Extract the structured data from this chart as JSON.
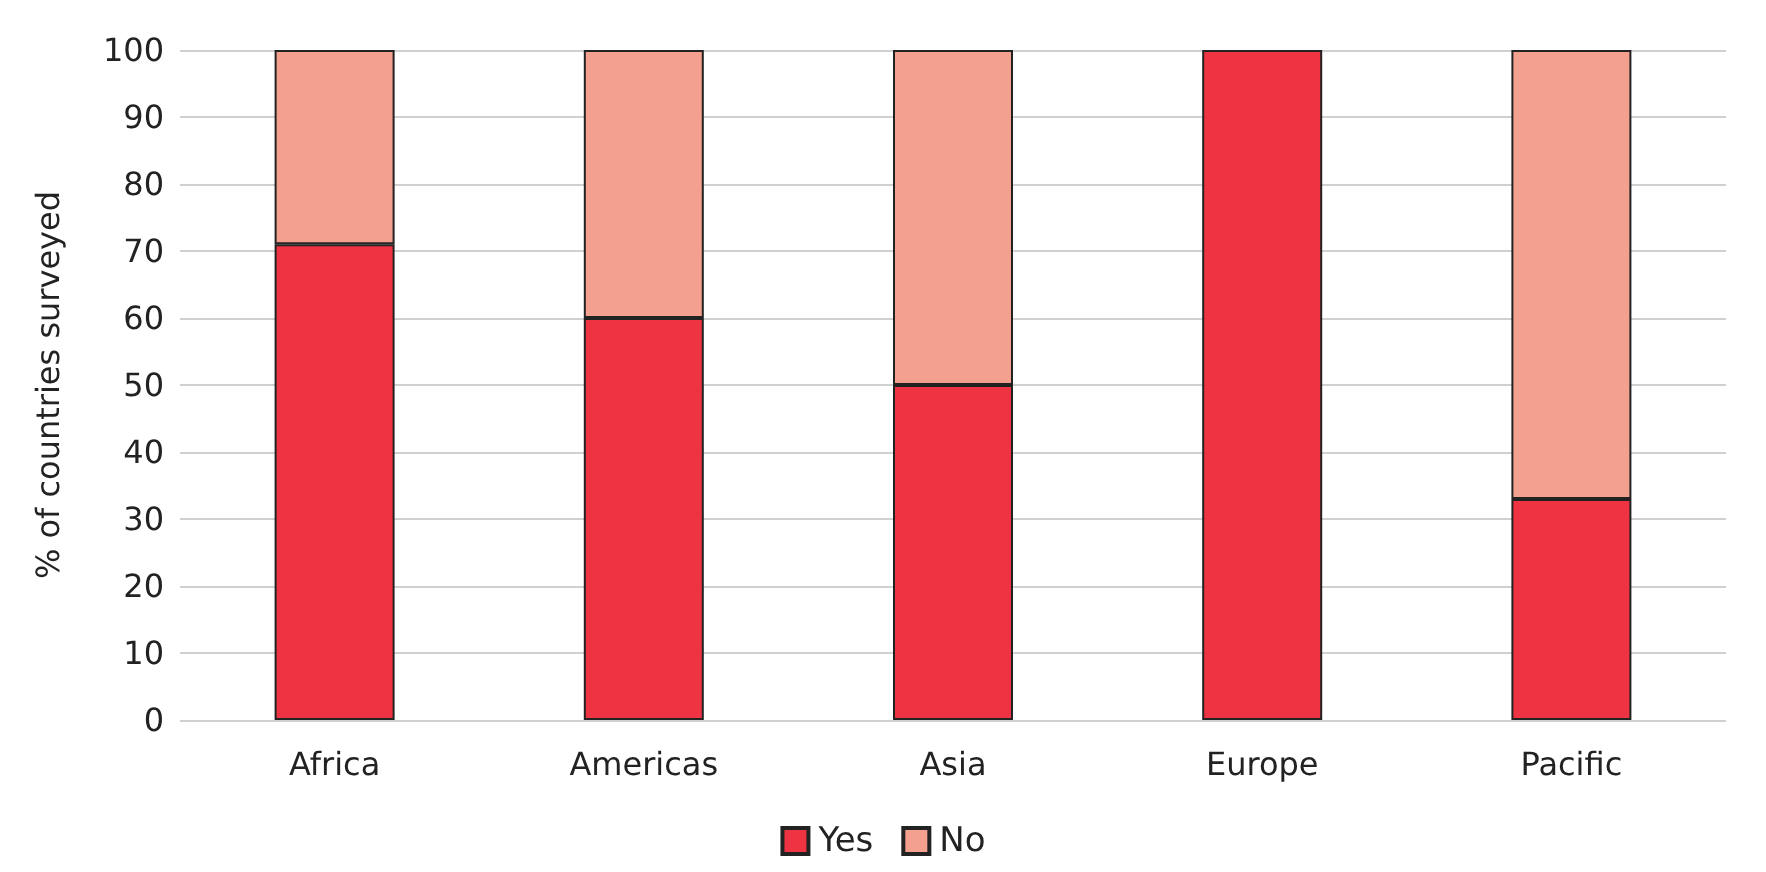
{
  "chart_data": {
    "type": "bar",
    "ylabel": "% of countries surveyed",
    "categories": [
      "Africa",
      "Americas",
      "Asia",
      "Europe",
      "Pacific"
    ],
    "stacked": true,
    "series": [
      {
        "name": "Yes",
        "color": "#ee3442",
        "values": [
          71,
          60,
          50,
          100,
          33
        ]
      },
      {
        "name": "No",
        "color": "#f4a08f",
        "values": [
          29,
          40,
          50,
          0,
          67
        ]
      }
    ],
    "ylim": [
      0,
      100
    ],
    "yticks": [
      0,
      10,
      20,
      30,
      40,
      50,
      60,
      70,
      80,
      90,
      100
    ],
    "grid": true,
    "legend": "bottom"
  }
}
